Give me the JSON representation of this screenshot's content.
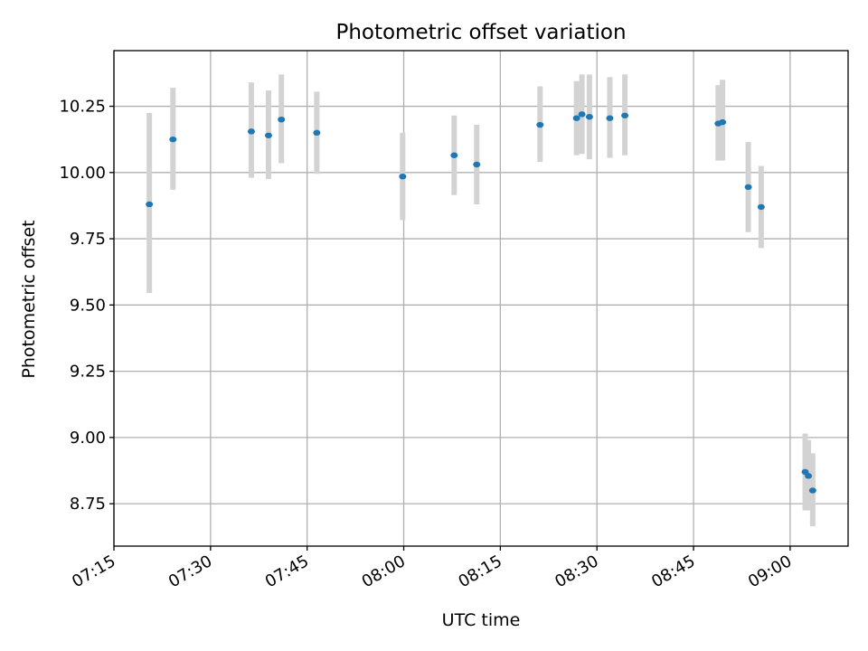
{
  "chart_data": {
    "type": "scatter",
    "title": "Photometric offset variation",
    "xlabel": "UTC time",
    "ylabel": "Photometric offset",
    "x_unit": "UTC time of day (HH:MM)",
    "xlim": [
      "07:15",
      "09:09"
    ],
    "ylim": [
      8.59,
      10.46
    ],
    "xticks": [
      "07:15",
      "07:30",
      "07:45",
      "08:00",
      "08:15",
      "08:30",
      "08:45",
      "09:00"
    ],
    "yticks": [
      "8.75",
      "9.00",
      "9.25",
      "9.50",
      "9.75",
      "10.00",
      "10.25"
    ],
    "grid": true,
    "marker_color": "#1f77b4",
    "errorbar_color": "#d3d3d3",
    "points": [
      {
        "x": "07:20:30",
        "y": 9.88,
        "yerr_low": 9.545,
        "yerr_high": 10.225
      },
      {
        "x": "07:24:10",
        "y": 10.125,
        "yerr_low": 9.935,
        "yerr_high": 10.32
      },
      {
        "x": "07:36:20",
        "y": 10.155,
        "yerr_low": 9.98,
        "yerr_high": 10.34
      },
      {
        "x": "07:39:00",
        "y": 10.14,
        "yerr_low": 9.975,
        "yerr_high": 10.31
      },
      {
        "x": "07:41:00",
        "y": 10.2,
        "yerr_low": 10.035,
        "yerr_high": 10.37
      },
      {
        "x": "07:46:30",
        "y": 10.15,
        "yerr_low": 9.995,
        "yerr_high": 10.305
      },
      {
        "x": "07:59:50",
        "y": 9.985,
        "yerr_low": 9.82,
        "yerr_high": 10.15
      },
      {
        "x": "08:07:50",
        "y": 10.065,
        "yerr_low": 9.915,
        "yerr_high": 10.215
      },
      {
        "x": "08:11:20",
        "y": 10.03,
        "yerr_low": 9.88,
        "yerr_high": 10.18
      },
      {
        "x": "08:21:10",
        "y": 10.18,
        "yerr_low": 10.04,
        "yerr_high": 10.325
      },
      {
        "x": "08:26:50",
        "y": 10.205,
        "yerr_low": 10.065,
        "yerr_high": 10.345
      },
      {
        "x": "08:27:40",
        "y": 10.22,
        "yerr_low": 10.07,
        "yerr_high": 10.37
      },
      {
        "x": "08:28:50",
        "y": 10.21,
        "yerr_low": 10.05,
        "yerr_high": 10.37
      },
      {
        "x": "08:32:00",
        "y": 10.205,
        "yerr_low": 10.055,
        "yerr_high": 10.36
      },
      {
        "x": "08:34:20",
        "y": 10.215,
        "yerr_low": 10.065,
        "yerr_high": 10.37
      },
      {
        "x": "08:48:50",
        "y": 10.185,
        "yerr_low": 10.045,
        "yerr_high": 10.33
      },
      {
        "x": "08:49:30",
        "y": 10.19,
        "yerr_low": 10.045,
        "yerr_high": 10.35
      },
      {
        "x": "08:53:30",
        "y": 9.945,
        "yerr_low": 9.775,
        "yerr_high": 10.115
      },
      {
        "x": "08:55:30",
        "y": 9.87,
        "yerr_low": 9.715,
        "yerr_high": 10.025
      },
      {
        "x": "09:02:20",
        "y": 8.87,
        "yerr_low": 8.725,
        "yerr_high": 9.015
      },
      {
        "x": "09:02:50",
        "y": 8.855,
        "yerr_low": 8.725,
        "yerr_high": 8.99
      },
      {
        "x": "09:03:30",
        "y": 8.8,
        "yerr_low": 8.665,
        "yerr_high": 8.94
      }
    ]
  }
}
